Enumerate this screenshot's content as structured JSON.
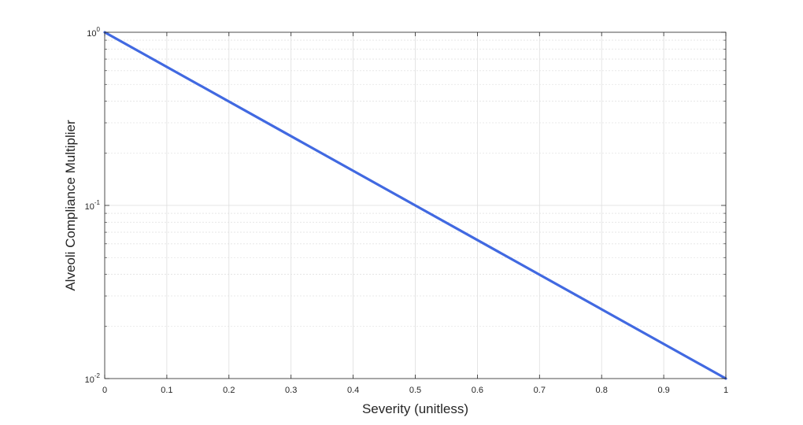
{
  "chart_data": {
    "type": "line",
    "title": "",
    "xlabel": "Severity (unitless)",
    "ylabel": "Alveoli Compliance Multiplier",
    "xlim": [
      0,
      1
    ],
    "ylim": [
      0.01,
      1
    ],
    "yscale": "log",
    "grid": true,
    "minor_grid": true,
    "legend": "none",
    "xticks": [
      "0",
      "0.1",
      "0.2",
      "0.3",
      "0.4",
      "0.5",
      "0.6",
      "0.7",
      "0.8",
      "0.9",
      "1"
    ],
    "yticks": [
      {
        "base": "10",
        "exp": "0"
      },
      {
        "base": "10",
        "exp": "-1"
      },
      {
        "base": "10",
        "exp": "-2"
      }
    ],
    "series": [
      {
        "color": "#4169E1",
        "x": [
          0,
          0.5,
          1
        ],
        "y": [
          1,
          0.1,
          0.01
        ]
      }
    ]
  }
}
